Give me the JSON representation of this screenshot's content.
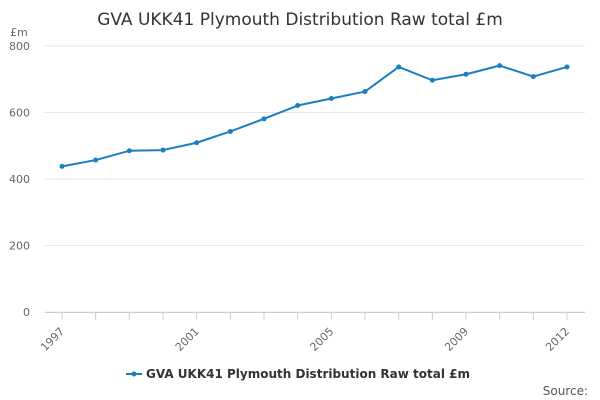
{
  "chart_data": {
    "type": "line",
    "title": "GVA UKK41 Plymouth Distribution Raw total £m",
    "y_unit": "£m",
    "xlabel": "",
    "ylabel": "",
    "x": [
      1997,
      1998,
      1999,
      2000,
      2001,
      2002,
      2003,
      2004,
      2005,
      2006,
      2007,
      2008,
      2009,
      2010,
      2011,
      2012
    ],
    "x_ticks": [
      "1997",
      "2001",
      "2005",
      "2009",
      "2012"
    ],
    "ylim": [
      0,
      800
    ],
    "y_ticks": [
      0,
      200,
      400,
      600,
      800
    ],
    "grid": true,
    "legend": "bottom-center",
    "series": [
      {
        "name": "GVA UKK41 Plymouth Distribution Raw total £m",
        "color": "#1a7fc1",
        "values": [
          438,
          457,
          485,
          487,
          509,
          543,
          581,
          621,
          642,
          663,
          737,
          697,
          715,
          741,
          708,
          737
        ]
      }
    ],
    "source_label": "Source:"
  }
}
